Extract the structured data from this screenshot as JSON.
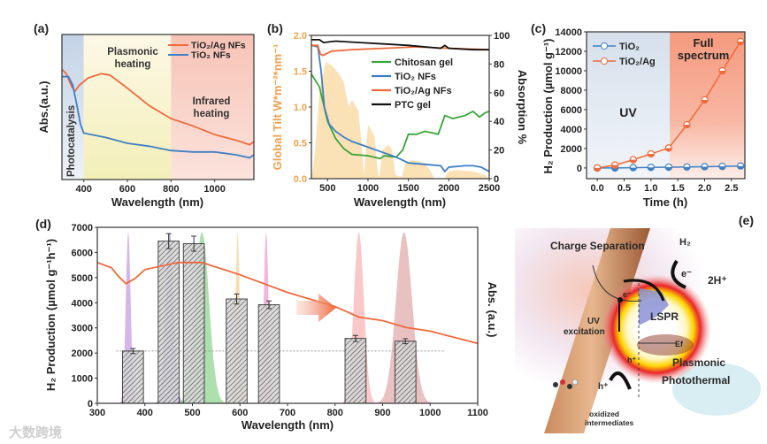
{
  "watermark": "大数跨境",
  "chart_data": [
    {
      "panel_label": "(a)",
      "type": "line",
      "xlabel": "Wavelength (nm)",
      "ylabel": "Abs.(a.u.)",
      "xlim": [
        300,
        1180
      ],
      "ylim": [
        0,
        1
      ],
      "xticks": [
        400,
        600,
        800,
        1000
      ],
      "regions": [
        {
          "name": "Photocatalysis",
          "from": 300,
          "to": 400,
          "color": "#c9d7e8"
        },
        {
          "name": "Plasmonic heating",
          "from": 400,
          "to": 800,
          "color": "#f6f1c6"
        },
        {
          "name": "Infrared heating",
          "from": 800,
          "to": 1180,
          "color": "#f7cbc2"
        }
      ],
      "annotations": {
        "photocatalysis": "Photocatalysis",
        "plasmonic_1": "Plasmonic",
        "plasmonic_2": "heating",
        "infrared_1": "Infrared",
        "infrared_2": "heating"
      },
      "legend_position": "top-right",
      "series": [
        {
          "name": "TiO₂/Ag NFs",
          "color": "#ef6a3c",
          "points": [
            [
              300,
              0.76
            ],
            [
              320,
              0.73
            ],
            [
              345,
              0.64
            ],
            [
              360,
              0.61
            ],
            [
              380,
              0.65
            ],
            [
              420,
              0.7
            ],
            [
              480,
              0.73
            ],
            [
              520,
              0.72
            ],
            [
              600,
              0.63
            ],
            [
              700,
              0.51
            ],
            [
              800,
              0.42
            ],
            [
              900,
              0.37
            ],
            [
              1000,
              0.31
            ],
            [
              1100,
              0.27
            ],
            [
              1160,
              0.24
            ],
            [
              1180,
              0.26
            ]
          ]
        },
        {
          "name": "TiO₂ NFs",
          "color": "#3f7fc4",
          "points": [
            [
              300,
              0.71
            ],
            [
              330,
              0.71
            ],
            [
              350,
              0.65
            ],
            [
              370,
              0.5
            ],
            [
              385,
              0.38
            ],
            [
              400,
              0.32
            ],
            [
              500,
              0.29
            ],
            [
              600,
              0.25
            ],
            [
              700,
              0.23
            ],
            [
              800,
              0.2
            ],
            [
              900,
              0.19
            ],
            [
              1000,
              0.19
            ],
            [
              1100,
              0.17
            ],
            [
              1160,
              0.15
            ],
            [
              1180,
              0.17
            ]
          ]
        }
      ]
    },
    {
      "panel_label": "(b)",
      "type": "line",
      "xlabel": "Wavelength (nm)",
      "ylabel_left": "Global Tilt W*m⁻²*nm⁻¹",
      "ylabel_right": "Absorption %",
      "xlim": [
        300,
        2500
      ],
      "ylim_left": [
        0,
        2.0
      ],
      "ylim_right": [
        0,
        100
      ],
      "xticks": [
        500,
        1000,
        1500,
        2000,
        2500
      ],
      "yticks_left": [
        "0.0",
        "0.5",
        "1.0",
        "1.5",
        "2.0"
      ],
      "yticks_right": [
        0,
        20,
        40,
        60,
        80,
        100
      ],
      "legend_position": "center",
      "solar_spectrum": {
        "color": "#f7c87a",
        "points": [
          [
            300,
            0
          ],
          [
            330,
            0.2
          ],
          [
            360,
            0.6
          ],
          [
            400,
            1.2
          ],
          [
            450,
            1.5
          ],
          [
            480,
            1.63
          ],
          [
            550,
            1.58
          ],
          [
            650,
            1.45
          ],
          [
            700,
            1.35
          ],
          [
            760,
            1.0
          ],
          [
            800,
            1.1
          ],
          [
            880,
            0.95
          ],
          [
            920,
            0.5
          ],
          [
            950,
            0.05
          ],
          [
            1000,
            0.75
          ],
          [
            1080,
            0.6
          ],
          [
            1120,
            0.1
          ],
          [
            1140,
            0.02
          ],
          [
            1180,
            0.4
          ],
          [
            1250,
            0.48
          ],
          [
            1300,
            0.4
          ],
          [
            1340,
            0.05
          ],
          [
            1420,
            0.02
          ],
          [
            1460,
            0.22
          ],
          [
            1550,
            0.26
          ],
          [
            1700,
            0.22
          ],
          [
            1780,
            0.1
          ],
          [
            1820,
            0.0
          ],
          [
            1950,
            0.0
          ],
          [
            1990,
            0.1
          ],
          [
            2100,
            0.12
          ],
          [
            2300,
            0.1
          ],
          [
            2450,
            0.05
          ],
          [
            2500,
            0.0
          ]
        ]
      },
      "series": [
        {
          "name": "Chitosan gel",
          "color": "#3aa53a",
          "points": [
            [
              300,
              73
            ],
            [
              400,
              64
            ],
            [
              450,
              52
            ],
            [
              500,
              40
            ],
            [
              600,
              28
            ],
            [
              700,
              21
            ],
            [
              800,
              17
            ],
            [
              1000,
              16
            ],
            [
              1150,
              14
            ],
            [
              1200,
              16
            ],
            [
              1350,
              15
            ],
            [
              1430,
              20
            ],
            [
              1500,
              31
            ],
            [
              1600,
              31
            ],
            [
              1700,
              33
            ],
            [
              1800,
              32
            ],
            [
              1870,
              31
            ],
            [
              1950,
              44
            ],
            [
              2050,
              42
            ],
            [
              2200,
              44
            ],
            [
              2300,
              47
            ],
            [
              2380,
              43
            ],
            [
              2450,
              46
            ],
            [
              2500,
              47
            ]
          ]
        },
        {
          "name": "TiO₂ NFs",
          "color": "#3f7fc4",
          "points": [
            [
              300,
              93
            ],
            [
              380,
              92
            ],
            [
              420,
              75
            ],
            [
              460,
              50
            ],
            [
              520,
              38
            ],
            [
              600,
              33
            ],
            [
              700,
              29
            ],
            [
              800,
              26
            ],
            [
              1000,
              22
            ],
            [
              1200,
              18
            ],
            [
              1350,
              15
            ],
            [
              1500,
              11
            ],
            [
              1700,
              10
            ],
            [
              1900,
              9
            ],
            [
              1950,
              5
            ],
            [
              2000,
              8
            ],
            [
              2200,
              9
            ],
            [
              2300,
              9
            ],
            [
              2400,
              8
            ],
            [
              2500,
              5
            ]
          ]
        },
        {
          "name": "TiO₂/Ag NFs",
          "color": "#ef6a3c",
          "points": [
            [
              300,
              93
            ],
            [
              380,
              93
            ],
            [
              410,
              87
            ],
            [
              440,
              86
            ],
            [
              550,
              89
            ],
            [
              800,
              90
            ],
            [
              1200,
              91
            ],
            [
              1600,
              92
            ],
            [
              2000,
              91
            ],
            [
              2500,
              90
            ]
          ]
        },
        {
          "name": "PTC gel",
          "color": "#111111",
          "points": [
            [
              300,
              97
            ],
            [
              400,
              97
            ],
            [
              450,
              95
            ],
            [
              600,
              96
            ],
            [
              900,
              95
            ],
            [
              1200,
              94
            ],
            [
              1500,
              93
            ],
            [
              1900,
              91
            ],
            [
              1950,
              93
            ],
            [
              2000,
              91
            ],
            [
              2300,
              90
            ],
            [
              2500,
              90
            ]
          ]
        }
      ]
    },
    {
      "panel_label": "(c)",
      "type": "line",
      "xlabel": "Time (h)",
      "ylabel": "H₂ Production (µmol g⁻¹)",
      "xlim": [
        -0.2,
        2.75
      ],
      "ylim": [
        -1100,
        14000
      ],
      "xticks": [
        "0.0",
        "0.5",
        "1.0",
        "1.5",
        "2.0",
        "2.5"
      ],
      "yticks": [
        0,
        2000,
        4000,
        6000,
        8000,
        10000,
        12000,
        14000
      ],
      "regions": [
        {
          "name": "UV",
          "from": -0.2,
          "to": 1.35,
          "color": "#dbe5ef"
        },
        {
          "name": "Full spectrum",
          "from": 1.35,
          "to": 2.75,
          "color": "#f6a58c"
        }
      ],
      "annotations": {
        "uv": "UV",
        "full_1": "Full",
        "full_2": "spectrum"
      },
      "legend_position": "top-left",
      "x": [
        0,
        0.33,
        0.67,
        1.0,
        1.33,
        1.67,
        2.0,
        2.33,
        2.67
      ],
      "series": [
        {
          "name": "TiO₂",
          "color": "#3f7fc4",
          "values": [
            0,
            0,
            30,
            60,
            80,
            100,
            130,
            160,
            200
          ]
        },
        {
          "name": "TiO₂/Ag",
          "color": "#ef6a3c",
          "values": [
            0,
            300,
            850,
            1450,
            2050,
            4450,
            7000,
            10000,
            13000
          ]
        }
      ]
    },
    {
      "panel_label": "(d)",
      "type": "bar",
      "xlabel": "Wavelength (nm)",
      "ylabel": "H₂ Production (µmol g⁻¹h⁻¹)",
      "ylabel_right": "Abs. (a.u.)",
      "xlim": [
        300,
        1100
      ],
      "ylim": [
        0,
        7000
      ],
      "xticks": [
        300,
        400,
        500,
        600,
        700,
        800,
        900,
        1000,
        1100
      ],
      "yticks": [
        0,
        1000,
        2000,
        3000,
        4000,
        5000,
        6000,
        7000
      ],
      "bars": [
        {
          "wavelength": 375,
          "value": 2080,
          "error": 100
        },
        {
          "wavelength": 450,
          "value": 6450,
          "error": 300
        },
        {
          "wavelength": 503,
          "value": 6350,
          "error": 300
        },
        {
          "wavelength": 593,
          "value": 4150,
          "error": 200
        },
        {
          "wavelength": 661,
          "value": 3920,
          "error": 150
        },
        {
          "wavelength": 843,
          "value": 2580,
          "error": 120
        },
        {
          "wavelength": 948,
          "value": 2470,
          "error": 100
        }
      ],
      "bar_width_nm": 44,
      "reference_line": {
        "value": 2080,
        "from": 340,
        "to": 1030
      },
      "led_spectra": [
        {
          "center": 365,
          "fwhm": 12,
          "color": "#b27ad6"
        },
        {
          "center": 452,
          "fwhm": 20,
          "color": "#7a6fd0"
        },
        {
          "center": 520,
          "fwhm": 35,
          "color": "#6cc46c"
        },
        {
          "center": 595,
          "fwhm": 10,
          "color": "#f2c070"
        },
        {
          "center": 655,
          "fwhm": 12,
          "color": "#e57ab8"
        },
        {
          "center": 850,
          "fwhm": 25,
          "color": "#f59a9a"
        },
        {
          "center": 945,
          "fwhm": 40,
          "color": "#d98e8e"
        }
      ],
      "abs_curve": {
        "color": "#ef6a3c",
        "ylim": [
          0,
          1
        ],
        "points": [
          [
            300,
            0.8
          ],
          [
            330,
            0.77
          ],
          [
            345,
            0.72
          ],
          [
            360,
            0.68
          ],
          [
            380,
            0.71
          ],
          [
            400,
            0.76
          ],
          [
            470,
            0.8
          ],
          [
            520,
            0.8
          ],
          [
            600,
            0.73
          ],
          [
            700,
            0.63
          ],
          [
            800,
            0.55
          ],
          [
            850,
            0.49
          ],
          [
            900,
            0.47
          ],
          [
            950,
            0.43
          ],
          [
            1000,
            0.41
          ],
          [
            1100,
            0.34
          ]
        ]
      }
    }
  ],
  "panel_e": {
    "label": "(e)",
    "charge_separation": "Charge Separation",
    "h2": "H₂",
    "e_minus_top": "e⁻",
    "two_h_plus": "2H⁺",
    "e_minus_band": "e⁻",
    "lspr": "LSPR",
    "uv": "UV",
    "excitation": "excitation",
    "ef": "Ef",
    "h_plus_band": "h⁺",
    "plasmonic": "Plasmonic",
    "photothermal": "Photothermal",
    "h_plus_arrow": "h⁺",
    "oxidized": "oxidized",
    "intermediates": "intermediates"
  }
}
